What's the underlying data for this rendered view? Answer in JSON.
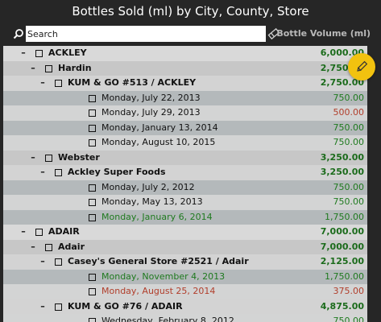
{
  "window": {
    "title": "Bottles Sold (ml) by City, County, Store"
  },
  "toolbar": {
    "search_placeholder": "Search",
    "column_header": "Bottle Volume (ml)"
  },
  "colors": {
    "background": "#262626",
    "fab": "#f2c20f",
    "value_positive": "#1f7a1f",
    "value_negative": "#b13e2b"
  },
  "rows": [
    {
      "level": 0,
      "label": "ACKLEY",
      "value": "6,000.00",
      "kind": "group",
      "color": "dgreen"
    },
    {
      "level": 1,
      "label": "Hardin",
      "value": "2,750.00",
      "kind": "group",
      "color": "dgreen"
    },
    {
      "level": 2,
      "label": "KUM & GO #513 / ACKLEY",
      "value": "2,750.00",
      "kind": "group",
      "color": "dgreen"
    },
    {
      "level": 3,
      "label": "Monday, July 22, 2013",
      "value": "750.00",
      "kind": "leaf",
      "color": "green"
    },
    {
      "level": 3,
      "label": "Monday, July 29, 2013",
      "value": "500.00",
      "kind": "leaf",
      "color": "red"
    },
    {
      "level": 3,
      "label": "Monday, January 13, 2014",
      "value": "750.00",
      "kind": "leaf",
      "color": "green"
    },
    {
      "level": 3,
      "label": "Monday, August 10, 2015",
      "value": "750.00",
      "kind": "leaf",
      "color": "green"
    },
    {
      "level": 1,
      "label": "Webster",
      "value": "3,250.00",
      "kind": "group",
      "color": "dgreen"
    },
    {
      "level": 2,
      "label": "Ackley Super Foods",
      "value": "3,250.00",
      "kind": "group",
      "color": "dgreen"
    },
    {
      "level": 3,
      "label": "Monday, July 2, 2012",
      "value": "750.00",
      "kind": "leaf",
      "color": "green"
    },
    {
      "level": 3,
      "label": "Monday, May 13, 2013",
      "value": "750.00",
      "kind": "leaf",
      "color": "green"
    },
    {
      "level": 3,
      "label": "Monday, January 6, 2014",
      "value": "1,750.00",
      "kind": "leaf",
      "color": "green",
      "label_color": "green"
    },
    {
      "level": 0,
      "label": "ADAIR",
      "value": "7,000.00",
      "kind": "group",
      "color": "dgreen"
    },
    {
      "level": 1,
      "label": "Adair",
      "value": "7,000.00",
      "kind": "group",
      "color": "dgreen"
    },
    {
      "level": 2,
      "label": "Casey's General Store #2521 / Adair",
      "value": "2,125.00",
      "kind": "group",
      "color": "dgreen"
    },
    {
      "level": 3,
      "label": "Monday, November 4, 2013",
      "value": "1,750.00",
      "kind": "leaf",
      "color": "green",
      "label_color": "green"
    },
    {
      "level": 3,
      "label": "Monday, August 25, 2014",
      "value": "375.00",
      "kind": "leaf",
      "color": "red",
      "label_color": "red"
    },
    {
      "level": 2,
      "label": "KUM & GO #76 / ADAIR",
      "value": "4,875.00",
      "kind": "group",
      "color": "dgreen"
    },
    {
      "level": 3,
      "label": "Wednesday, February 8, 2012",
      "value": "750.00",
      "kind": "leaf",
      "color": "green"
    }
  ]
}
